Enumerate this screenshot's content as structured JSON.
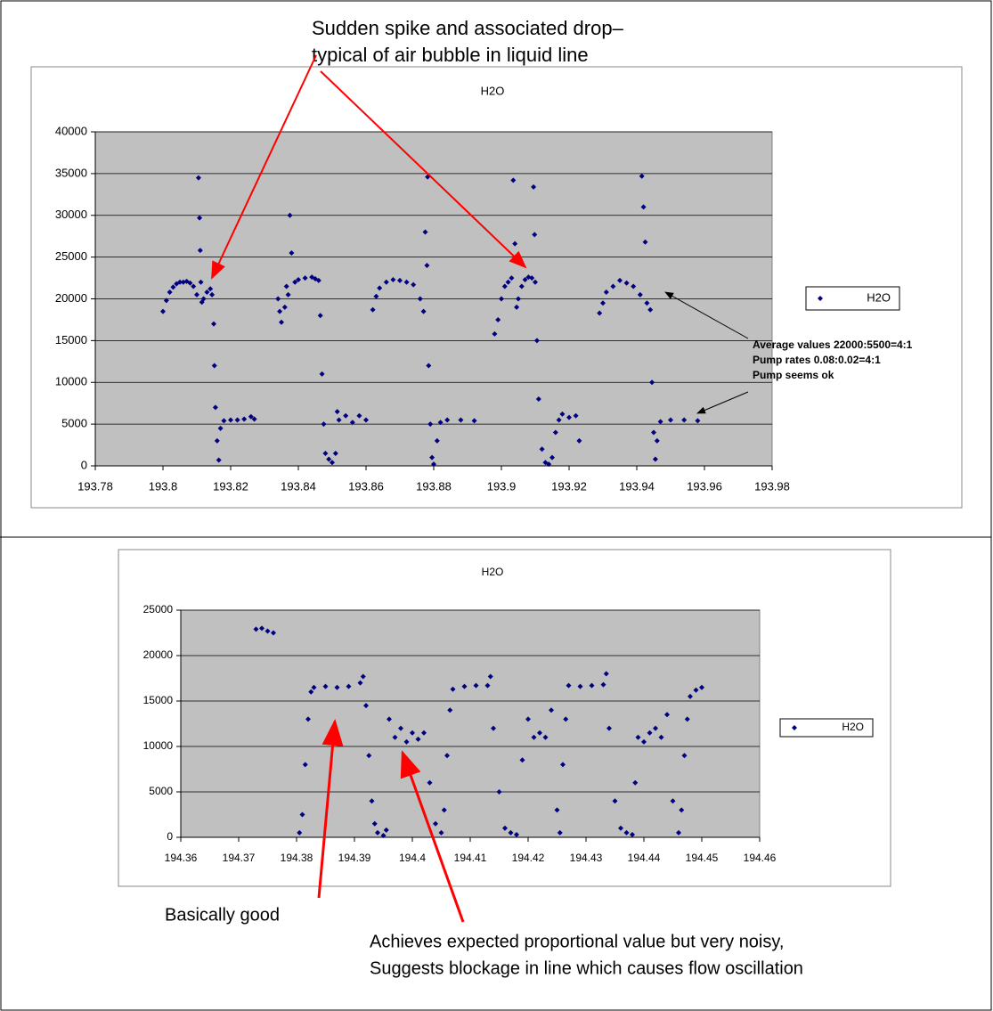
{
  "chart_data": [
    {
      "type": "scatter",
      "title": "H2O",
      "xlim": [
        193.78,
        193.98
      ],
      "xticks": [
        193.78,
        193.8,
        193.82,
        193.84,
        193.86,
        193.88,
        193.9,
        193.92,
        193.94,
        193.96,
        193.98
      ],
      "ylim": [
        0,
        40000
      ],
      "yticks": [
        0,
        5000,
        10000,
        15000,
        20000,
        25000,
        30000,
        35000,
        40000
      ],
      "grid": true,
      "legend": "right",
      "series": [
        {
          "name": "H2O",
          "color": "#000080",
          "x": [
            193.8,
            193.801,
            193.802,
            193.803,
            193.804,
            193.805,
            193.806,
            193.807,
            193.808,
            193.809,
            193.81,
            193.8105,
            193.8108,
            193.811,
            193.8112,
            193.8115,
            193.812,
            193.813,
            193.814,
            193.8145,
            193.815,
            193.8152,
            193.8155,
            193.816,
            193.8165,
            193.817,
            193.818,
            193.82,
            193.822,
            193.824,
            193.826,
            193.827,
            193.834,
            193.8345,
            193.835,
            193.836,
            193.8365,
            193.837,
            193.8375,
            193.838,
            193.839,
            193.84,
            193.842,
            193.844,
            193.845,
            193.846,
            193.8465,
            193.847,
            193.8475,
            193.848,
            193.849,
            193.85,
            193.851,
            193.8515,
            193.852,
            193.854,
            193.856,
            193.858,
            193.86,
            193.862,
            193.863,
            193.864,
            193.866,
            193.868,
            193.87,
            193.872,
            193.874,
            193.876,
            193.877,
            193.8775,
            193.878,
            193.8782,
            193.8785,
            193.879,
            193.8795,
            193.88,
            193.881,
            193.882,
            193.884,
            193.888,
            193.892,
            193.898,
            193.899,
            193.9,
            193.901,
            193.902,
            193.903,
            193.9035,
            193.904,
            193.9045,
            193.905,
            193.906,
            193.907,
            193.908,
            193.909,
            193.9095,
            193.9098,
            193.91,
            193.9105,
            193.911,
            193.912,
            193.913,
            193.914,
            193.915,
            193.916,
            193.917,
            193.918,
            193.92,
            193.922,
            193.923,
            193.929,
            193.93,
            193.931,
            193.933,
            193.935,
            193.937,
            193.939,
            193.941,
            193.9415,
            193.942,
            193.9425,
            193.943,
            193.944,
            193.9445,
            193.945,
            193.9455,
            193.946,
            193.947,
            193.95,
            193.954,
            193.958
          ],
          "values": [
            18500,
            19800,
            20800,
            21400,
            21800,
            22000,
            22000,
            22100,
            21900,
            21500,
            20500,
            34500,
            29700,
            25800,
            22000,
            19600,
            20000,
            20800,
            21200,
            20500,
            17000,
            12000,
            7000,
            3000,
            700,
            4500,
            5400,
            5500,
            5500,
            5600,
            5900,
            5600,
            20000,
            18500,
            17200,
            19000,
            21500,
            20500,
            30000,
            25500,
            22000,
            22300,
            22500,
            22600,
            22400,
            22200,
            18000,
            11000,
            5000,
            1500,
            800,
            400,
            1500,
            6500,
            5500,
            6000,
            5200,
            6000,
            5500,
            18700,
            20300,
            21300,
            22000,
            22300,
            22200,
            22000,
            21700,
            20000,
            18500,
            28000,
            24000,
            34600,
            12000,
            5000,
            1000,
            200,
            3000,
            5200,
            5500,
            5500,
            5400,
            15800,
            17500,
            20000,
            21500,
            22000,
            22500,
            34200,
            26600,
            19000,
            20000,
            21500,
            22300,
            22600,
            22500,
            33400,
            27700,
            22000,
            15000,
            8000,
            2000,
            400,
            200,
            1000,
            4000,
            5500,
            6200,
            5800,
            6000,
            3000,
            18300,
            19500,
            20800,
            21500,
            22200,
            21900,
            21500,
            20500,
            34700,
            31000,
            26800,
            19500,
            18700,
            10000,
            4000,
            800,
            3000,
            5300,
            5500,
            5500,
            5400
          ]
        }
      ],
      "annotations": [
        [
          "Sudden spike and associated drop–",
          "typical of air bubble in liquid line"
        ],
        [
          "Average values 22000:5500=4:1",
          "Pump rates 0.08:0.02=4:1",
          "Pump seems ok"
        ]
      ]
    },
    {
      "type": "scatter",
      "title": "H2O",
      "xlim": [
        194.36,
        194.46
      ],
      "xticks": [
        194.36,
        194.37,
        194.38,
        194.39,
        194.4,
        194.41,
        194.42,
        194.43,
        194.44,
        194.45,
        194.46
      ],
      "ylim": [
        0,
        25000
      ],
      "yticks": [
        0,
        5000,
        10000,
        15000,
        20000,
        25000
      ],
      "grid": true,
      "legend": "right",
      "series": [
        {
          "name": "H2O",
          "color": "#000080",
          "x": [
            194.373,
            194.374,
            194.375,
            194.376,
            194.3805,
            194.381,
            194.3815,
            194.382,
            194.3825,
            194.383,
            194.385,
            194.387,
            194.389,
            194.391,
            194.3915,
            194.392,
            194.3925,
            194.393,
            194.3935,
            194.394,
            194.395,
            194.3955,
            194.396,
            194.397,
            194.398,
            194.399,
            194.4,
            194.401,
            194.402,
            194.403,
            194.404,
            194.405,
            194.4055,
            194.406,
            194.4065,
            194.407,
            194.409,
            194.411,
            194.413,
            194.4135,
            194.414,
            194.415,
            194.416,
            194.417,
            194.418,
            194.419,
            194.42,
            194.421,
            194.422,
            194.423,
            194.424,
            194.425,
            194.4255,
            194.426,
            194.4265,
            194.427,
            194.429,
            194.431,
            194.433,
            194.4335,
            194.434,
            194.435,
            194.436,
            194.437,
            194.438,
            194.4385,
            194.439,
            194.44,
            194.441,
            194.442,
            194.443,
            194.444,
            194.445,
            194.446,
            194.4465,
            194.447,
            194.4475,
            194.448,
            194.449,
            194.45
          ],
          "values": [
            22900,
            23000,
            22700,
            22500,
            500,
            2500,
            8000,
            13000,
            16000,
            16500,
            16600,
            16500,
            16600,
            17000,
            17700,
            14500,
            9000,
            4000,
            1500,
            500,
            200,
            800,
            13000,
            11000,
            12000,
            10500,
            11500,
            10800,
            11500,
            6000,
            1500,
            500,
            3000,
            9000,
            14000,
            16300,
            16600,
            16700,
            16700,
            17700,
            12000,
            5000,
            1000,
            500,
            300,
            8500,
            13000,
            11000,
            11500,
            11000,
            14000,
            3000,
            500,
            8000,
            13000,
            16700,
            16600,
            16700,
            16800,
            18000,
            12000,
            4000,
            1000,
            500,
            300,
            6000,
            11000,
            10500,
            11500,
            12000,
            11000,
            13500,
            4000,
            500,
            3000,
            9000,
            13000,
            15500,
            16200,
            16500
          ]
        }
      ],
      "annotations": [
        [
          "Basically good"
        ],
        [
          "Achieves expected proportional value but very noisy,",
          "Suggests blockage in line which causes flow oscillation"
        ]
      ]
    }
  ]
}
